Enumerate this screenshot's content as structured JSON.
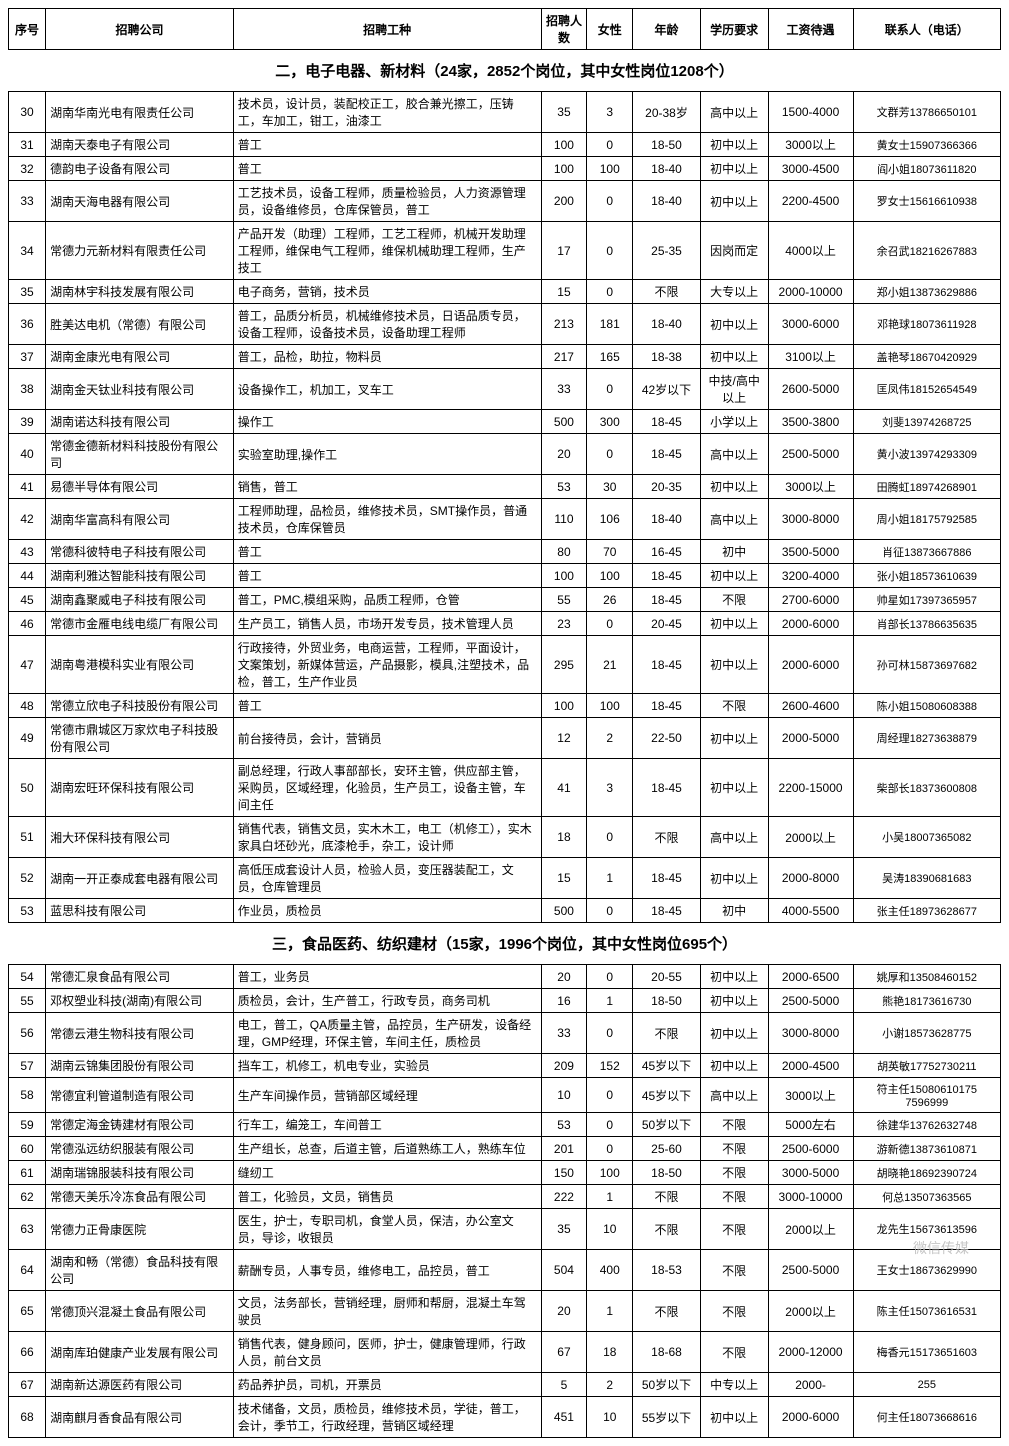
{
  "headers": {
    "seq": "序号",
    "company": "招聘公司",
    "job": "招聘工种",
    "count": "招聘人数",
    "female": "女性",
    "age": "年龄",
    "edu": "学历要求",
    "salary": "工资待遇",
    "contact": "联系人（电话）"
  },
  "section2_title": "二，电子电器、新材料（24家，2852个岗位，其中女性岗位1208个）",
  "section3_title": "三，食品医药、纺织建材（15家，1996个岗位，其中女性岗位695个）",
  "rows2": [
    {
      "seq": "30",
      "company": "湖南华南光电有限责任公司",
      "job": "技术员，设计员，装配校正工，胶合兼光擦工，压铸工，车加工，钳工，油漆工",
      "count": "35",
      "female": "3",
      "age": "20-38岁",
      "edu": "高中以上",
      "salary": "1500-4000",
      "contact": "文群芳13786650101"
    },
    {
      "seq": "31",
      "company": "湖南天泰电子有限公司",
      "job": "普工",
      "count": "100",
      "female": "0",
      "age": "18-50",
      "edu": "初中以上",
      "salary": "3000以上",
      "contact": "黄女士15907366366"
    },
    {
      "seq": "32",
      "company": "德韵电子设备有限公司",
      "job": "普工",
      "count": "100",
      "female": "100",
      "age": "18-40",
      "edu": "初中以上",
      "salary": "3000-4500",
      "contact": "阎小姐18073611820"
    },
    {
      "seq": "33",
      "company": "湖南天海电器有限公司",
      "job": "工艺技术员，设备工程师，质量检验员，人力资源管理员，设备维修员，仓库保管员，普工",
      "count": "200",
      "female": "0",
      "age": "18-40",
      "edu": "初中以上",
      "salary": "2200-4500",
      "contact": "罗女士15616610938"
    },
    {
      "seq": "34",
      "company": "常德力元新材料有限责任公司",
      "job": "产品开发（助理）工程师，工艺工程师，机械开发助理工程师，维保电气工程师，维保机械助理工程师，生产技工",
      "count": "17",
      "female": "0",
      "age": "25-35",
      "edu": "因岗而定",
      "salary": "4000以上",
      "contact": "余召武18216267883"
    },
    {
      "seq": "35",
      "company": "湖南林宇科技发展有限公司",
      "job": "电子商务，营销，技术员",
      "count": "15",
      "female": "0",
      "age": "不限",
      "edu": "大专以上",
      "salary": "2000-10000",
      "contact": "郑小姐13873629886"
    },
    {
      "seq": "36",
      "company": "胜美达电机（常德）有限公司",
      "job": "普工，品质分析员，机械维修技术员，日语品质专员，设备工程师，设备技术员，设备助理工程师",
      "count": "213",
      "female": "181",
      "age": "18-40",
      "edu": "初中以上",
      "salary": "3000-6000",
      "contact": "邓艳球18073611928"
    },
    {
      "seq": "37",
      "company": "湖南金康光电有限公司",
      "job": "普工，品检，助拉，物料员",
      "count": "217",
      "female": "165",
      "age": "18-38",
      "edu": "初中以上",
      "salary": "3100以上",
      "contact": "盖艳琴18670420929"
    },
    {
      "seq": "38",
      "company": "湖南金天钛业科技有限公司",
      "job": "设备操作工，机加工，叉车工",
      "count": "33",
      "female": "0",
      "age": "42岁以下",
      "edu": "中技/高中以上",
      "salary": "2600-5000",
      "contact": "匡凤伟18152654549"
    },
    {
      "seq": "39",
      "company": "湖南诺达科技有限公司",
      "job": "操作工",
      "count": "500",
      "female": "300",
      "age": "18-45",
      "edu": "小学以上",
      "salary": "3500-3800",
      "contact": "刘斐13974268725"
    },
    {
      "seq": "40",
      "company": "常德金德新材料科技股份有限公司",
      "job": "实验室助理,操作工",
      "count": "20",
      "female": "0",
      "age": "18-45",
      "edu": "高中以上",
      "salary": "2500-5000",
      "contact": "黄小波13974293309"
    },
    {
      "seq": "41",
      "company": "易德半导体有限公司",
      "job": "销售，普工",
      "count": "53",
      "female": "30",
      "age": "20-35",
      "edu": "初中以上",
      "salary": "3000以上",
      "contact": "田腾虹18974268901"
    },
    {
      "seq": "42",
      "company": "湖南华富高科有限公司",
      "job": "工程师助理，品检员，维修技术员，SMT操作员，普通技术员，仓库保管员",
      "count": "110",
      "female": "106",
      "age": "18-40",
      "edu": "高中以上",
      "salary": "3000-8000",
      "contact": "周小姐18175792585"
    },
    {
      "seq": "43",
      "company": "常德科彼特电子科技有限公司",
      "job": "普工",
      "count": "80",
      "female": "70",
      "age": "16-45",
      "edu": "初中",
      "salary": "3500-5000",
      "contact": "肖征13873667886"
    },
    {
      "seq": "44",
      "company": "湖南利雅达智能科技有限公司",
      "job": "普工",
      "count": "100",
      "female": "100",
      "age": "18-45",
      "edu": "初中以上",
      "salary": "3200-4000",
      "contact": "张小姐18573610639"
    },
    {
      "seq": "45",
      "company": "湖南鑫聚威电子科技有限公司",
      "job": "普工，PMC,模组采购，品质工程师，仓管",
      "count": "55",
      "female": "26",
      "age": "18-45",
      "edu": "不限",
      "salary": "2700-6000",
      "contact": "帅星如17397365957"
    },
    {
      "seq": "46",
      "company": "常德市金雁电线电缆厂有限公司",
      "job": "生产员工，销售人员，市场开发专员，技术管理人员",
      "count": "23",
      "female": "0",
      "age": "20-45",
      "edu": "初中以上",
      "salary": "2000-6000",
      "contact": "肖部长13786635635"
    },
    {
      "seq": "47",
      "company": "湖南粤港模科实业有限公司",
      "job": "行政接待，外贸业务，电商运营，工程师，平面设计，文案策划，新媒体营运，产品摄影，模具,注塑技术，品检，普工，生产作业员",
      "count": "295",
      "female": "21",
      "age": "18-45",
      "edu": "初中以上",
      "salary": "2000-6000",
      "contact": "孙可林15873697682"
    },
    {
      "seq": "48",
      "company": "常德立欣电子科技股份有限公司",
      "job": "普工",
      "count": "100",
      "female": "100",
      "age": "18-45",
      "edu": "不限",
      "salary": "2600-4600",
      "contact": "陈小姐15080608388"
    },
    {
      "seq": "49",
      "company": "常德市鼎城区万家炊电子科技股份有限公司",
      "job": "前台接待员，会计，营销员",
      "count": "12",
      "female": "2",
      "age": "22-50",
      "edu": "初中以上",
      "salary": "2000-5000",
      "contact": "周经理18273638879"
    },
    {
      "seq": "50",
      "company": "湖南宏旺环保科技有限公司",
      "job": "副总经理，行政人事部部长，安环主管，供应部主管，采购员，区域经理，化验员，生产员工，设备主管，车间主任",
      "count": "41",
      "female": "3",
      "age": "18-45",
      "edu": "初中以上",
      "salary": "2200-15000",
      "contact": "柴部长18373600808"
    },
    {
      "seq": "51",
      "company": "湘大环保科技有限公司",
      "job": "销售代表，销售文员，实木木工，电工（机修工），实木家具白坯砂光，底漆枪手，杂工，设计师",
      "count": "18",
      "female": "0",
      "age": "不限",
      "edu": "高中以上",
      "salary": "2000以上",
      "contact": "小吴18007365082"
    },
    {
      "seq": "52",
      "company": "湖南一开正泰成套电器有限公司",
      "job": "高低压成套设计人员，检验人员，变压器装配工，文员，仓库管理员",
      "count": "15",
      "female": "1",
      "age": "18-45",
      "edu": "初中以上",
      "salary": "2000-8000",
      "contact": "吴涛18390681683"
    },
    {
      "seq": "53",
      "company": "蓝思科技有限公司",
      "job": "作业员，质检员",
      "count": "500",
      "female": "0",
      "age": "18-45",
      "edu": "初中",
      "salary": "4000-5500",
      "contact": "张主任18973628677"
    }
  ],
  "rows3": [
    {
      "seq": "54",
      "company": "常德汇泉食品有限公司",
      "job": "普工，业务员",
      "count": "20",
      "female": "0",
      "age": "20-55",
      "edu": "初中以上",
      "salary": "2000-6500",
      "contact": "姚厚和13508460152"
    },
    {
      "seq": "55",
      "company": "邓权塑业科技(湖南)有限公司",
      "job": "质检员，会计，生产普工，行政专员，商务司机",
      "count": "16",
      "female": "1",
      "age": "18-50",
      "edu": "初中以上",
      "salary": "2500-5000",
      "contact": "熊艳18173616730"
    },
    {
      "seq": "56",
      "company": "常德云港生物科技有限公司",
      "job": "电工，普工，QA质量主管，品控员，生产研发，设备经理，GMP经理，环保主管，车间主任，质检员",
      "count": "33",
      "female": "0",
      "age": "不限",
      "edu": "初中以上",
      "salary": "3000-8000",
      "contact": "小谢18573628775"
    },
    {
      "seq": "57",
      "company": "湖南云锦集团股份有限公司",
      "job": "挡车工，机修工，机电专业，实验员",
      "count": "209",
      "female": "152",
      "age": "45岁以下",
      "edu": "初中以上",
      "salary": "2000-4500",
      "contact": "胡英敏17752730211"
    },
    {
      "seq": "58",
      "company": "常德宜利管道制造有限公司",
      "job": "生产车间操作员，营销部区域经理",
      "count": "10",
      "female": "0",
      "age": "45岁以下",
      "edu": "高中以上",
      "salary": "3000以上",
      "contact": "符主任15080610175 7596999"
    },
    {
      "seq": "59",
      "company": "常德定海金铸建材有限公司",
      "job": "行车工，编笼工，车间普工",
      "count": "53",
      "female": "0",
      "age": "50岁以下",
      "edu": "不限",
      "salary": "5000左右",
      "contact": "徐建华13762632748"
    },
    {
      "seq": "60",
      "company": "常德泓远纺织服装有限公司",
      "job": "生产组长，总查，后道主管，后道熟练工人，熟练车位",
      "count": "201",
      "female": "0",
      "age": "25-60",
      "edu": "不限",
      "salary": "2500-6000",
      "contact": "游新德13873610871"
    },
    {
      "seq": "61",
      "company": "湖南瑞锦服装科技有限公司",
      "job": "缝纫工",
      "count": "150",
      "female": "100",
      "age": "18-50",
      "edu": "不限",
      "salary": "3000-5000",
      "contact": "胡晓艳18692390724"
    },
    {
      "seq": "62",
      "company": "常德天美乐冷冻食品有限公司",
      "job": "普工，化验员，文员，销售员",
      "count": "222",
      "female": "1",
      "age": "不限",
      "edu": "不限",
      "salary": "3000-10000",
      "contact": "何总13507363565"
    },
    {
      "seq": "63",
      "company": "常德力正骨康医院",
      "job": "医生，护士，专职司机，食堂人员，保洁，办公室文员，导诊，收银员",
      "count": "35",
      "female": "10",
      "age": "不限",
      "edu": "不限",
      "salary": "2000以上",
      "contact": "龙先生15673613596"
    },
    {
      "seq": "64",
      "company": "湖南和畅（常德）食品科技有限公司",
      "job": "薪酬专员，人事专员，维修电工，品控员，普工",
      "count": "504",
      "female": "400",
      "age": "18-53",
      "edu": "不限",
      "salary": "2500-5000",
      "contact": "王女士18673629990"
    },
    {
      "seq": "65",
      "company": "常德顶兴混凝土食品有限公司",
      "job": "文员，法务部长，营销经理，厨师和帮厨，混凝土车驾驶员",
      "count": "20",
      "female": "1",
      "age": "不限",
      "edu": "不限",
      "salary": "2000以上",
      "contact": "陈主任15073616531"
    },
    {
      "seq": "66",
      "company": "湖南库珀健康产业发展有限公司",
      "job": "销售代表，健身顾问，医师，护士，健康管理师，行政人员，前台文员",
      "count": "67",
      "female": "18",
      "age": "18-68",
      "edu": "不限",
      "salary": "2000-12000",
      "contact": "梅香元15173651603"
    },
    {
      "seq": "67",
      "company": "湖南新达源医药有限公司",
      "job": "药品养护员，司机，开票员",
      "count": "5",
      "female": "2",
      "age": "50岁以下",
      "edu": "中专以上",
      "salary": "2000-",
      "contact": "255"
    },
    {
      "seq": "68",
      "company": "湖南麒月香食品有限公司",
      "job": "技术储备，文员，质检员，维修技术员，学徒，普工，会计，季节工，行政经理，营销区域经理",
      "count": "451",
      "female": "10",
      "age": "55岁以下",
      "edu": "初中以上",
      "salary": "2000-6000",
      "contact": "何主任18073668616"
    }
  ],
  "watermark": "微信传媒",
  "colors": {
    "border": "#000000",
    "bg": "#ffffff",
    "text": "#000000"
  }
}
